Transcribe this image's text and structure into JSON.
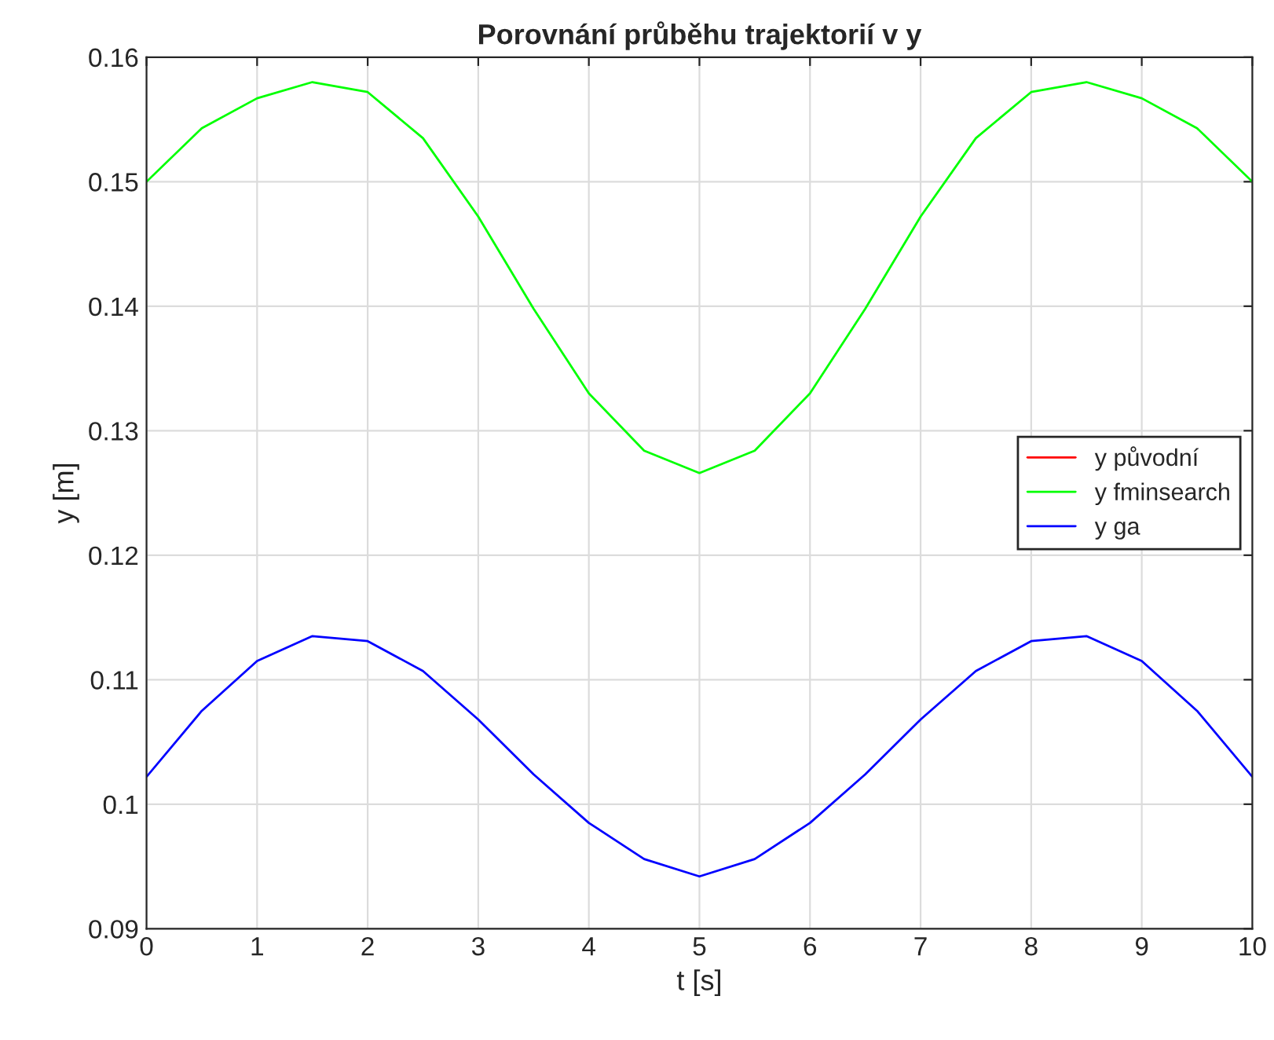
{
  "chart_data": {
    "type": "line",
    "title": "Porovnání průběhu trajektorií v y",
    "xlabel": "t [s]",
    "ylabel": "y [m]",
    "x": [
      0,
      0.5,
      1,
      1.5,
      2,
      2.5,
      3,
      3.5,
      4,
      4.5,
      5,
      5.5,
      6,
      6.5,
      7,
      7.5,
      8,
      8.5,
      9,
      9.5,
      10
    ],
    "series": [
      {
        "name": "y původní",
        "color": "#ff0000",
        "values": [
          null,
          null,
          null,
          null,
          null,
          null,
          null,
          null,
          null,
          null,
          null,
          null,
          null,
          null,
          null,
          null,
          null,
          null,
          null,
          null,
          null
        ]
      },
      {
        "name": "y fminsearch",
        "color": "#00ff00",
        "values": [
          0.15,
          0.1543,
          0.1567,
          0.158,
          0.1572,
          0.1535,
          0.1472,
          0.1398,
          0.133,
          0.1284,
          0.1266,
          0.1284,
          0.133,
          0.1398,
          0.1472,
          0.1535,
          0.1572,
          0.158,
          0.1567,
          0.1543,
          0.15
        ]
      },
      {
        "name": "y ga",
        "color": "#0000ff",
        "values": [
          0.1022,
          0.1075,
          0.1115,
          0.1135,
          0.1131,
          0.1107,
          0.1068,
          0.1024,
          0.0985,
          0.0956,
          0.0942,
          0.0956,
          0.0985,
          0.1024,
          0.1068,
          0.1107,
          0.1131,
          0.1135,
          0.1115,
          0.1075,
          0.1022
        ]
      }
    ],
    "xlim": [
      0,
      10
    ],
    "xticks": [
      0,
      1,
      2,
      3,
      4,
      5,
      6,
      7,
      8,
      9,
      10
    ],
    "ylim": [
      0.09,
      0.16
    ],
    "yticks": [
      0.09,
      0.1,
      0.11,
      0.12,
      0.13,
      0.14,
      0.15,
      0.16
    ],
    "grid": true,
    "legend": "right"
  }
}
